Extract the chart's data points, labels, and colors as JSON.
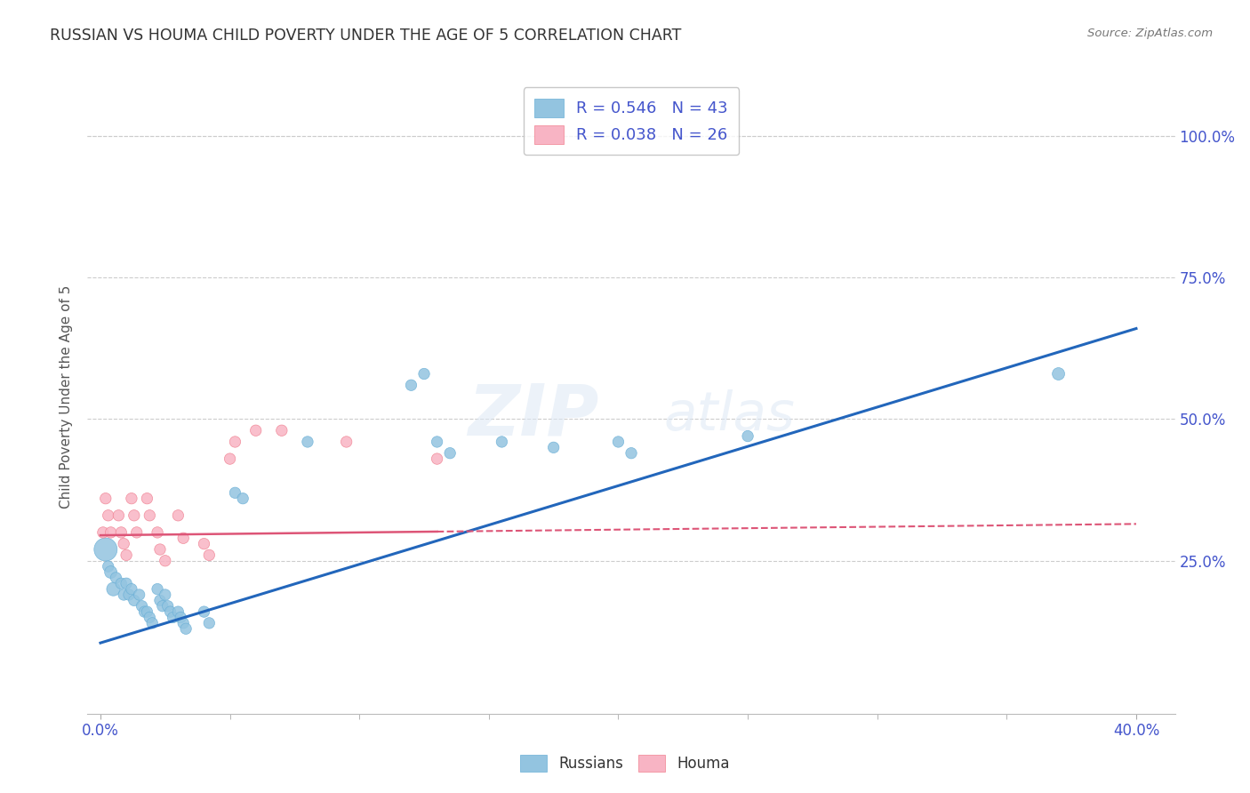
{
  "title": "RUSSIAN VS HOUMA CHILD POVERTY UNDER THE AGE OF 5 CORRELATION CHART",
  "source": "Source: ZipAtlas.com",
  "ylabel": "Child Poverty Under the Age of 5",
  "xlabel_ticks": [
    "0.0%",
    "40.0%"
  ],
  "xlabel_tick_vals": [
    0.0,
    0.4
  ],
  "ylabel_ticks": [
    "100.0%",
    "75.0%",
    "50.0%",
    "25.0%"
  ],
  "ylabel_tick_vals": [
    1.0,
    0.75,
    0.5,
    0.25
  ],
  "xlim": [
    -0.005,
    0.415
  ],
  "ylim": [
    -0.02,
    1.1
  ],
  "legend1_label": "R = 0.546   N = 43",
  "legend2_label": "R = 0.038   N = 26",
  "legend_bottom_label1": "Russians",
  "legend_bottom_label2": "Houma",
  "watermark_zip": "ZIP",
  "watermark_atlas": "atlas",
  "blue_color": "#93c4e0",
  "pink_color": "#f8b4c4",
  "blue_edge": "#6aafd6",
  "pink_edge": "#f08090",
  "blue_line_color": "#2266bb",
  "pink_line_color": "#dd5577",
  "title_color": "#333333",
  "source_color": "#777777",
  "axis_tick_color": "#4455cc",
  "ylabel_color": "#555555",
  "grid_color": "#cccccc",
  "background_color": "#ffffff",
  "russians_x": [
    0.002,
    0.003,
    0.004,
    0.005,
    0.006,
    0.008,
    0.009,
    0.01,
    0.011,
    0.012,
    0.013,
    0.015,
    0.016,
    0.017,
    0.018,
    0.019,
    0.02,
    0.022,
    0.023,
    0.024,
    0.025,
    0.026,
    0.027,
    0.028,
    0.03,
    0.031,
    0.032,
    0.033,
    0.04,
    0.042,
    0.052,
    0.055,
    0.08,
    0.12,
    0.125,
    0.13,
    0.135,
    0.155,
    0.175,
    0.2,
    0.205,
    0.25,
    0.37
  ],
  "russians_y": [
    0.27,
    0.24,
    0.23,
    0.2,
    0.22,
    0.21,
    0.19,
    0.21,
    0.19,
    0.2,
    0.18,
    0.19,
    0.17,
    0.16,
    0.16,
    0.15,
    0.14,
    0.2,
    0.18,
    0.17,
    0.19,
    0.17,
    0.16,
    0.15,
    0.16,
    0.15,
    0.14,
    0.13,
    0.16,
    0.14,
    0.37,
    0.36,
    0.46,
    0.56,
    0.58,
    0.46,
    0.44,
    0.46,
    0.45,
    0.46,
    0.44,
    0.47,
    0.58
  ],
  "russians_size": [
    350,
    80,
    100,
    120,
    80,
    80,
    80,
    80,
    80,
    80,
    80,
    80,
    80,
    80,
    80,
    80,
    80,
    80,
    80,
    80,
    80,
    80,
    80,
    80,
    80,
    80,
    80,
    80,
    80,
    80,
    80,
    80,
    80,
    80,
    80,
    80,
    80,
    80,
    80,
    80,
    80,
    80,
    100
  ],
  "houma_x": [
    0.001,
    0.002,
    0.003,
    0.004,
    0.007,
    0.008,
    0.009,
    0.01,
    0.012,
    0.013,
    0.014,
    0.018,
    0.019,
    0.022,
    0.023,
    0.025,
    0.03,
    0.032,
    0.04,
    0.042,
    0.05,
    0.052,
    0.06,
    0.07,
    0.095,
    0.13
  ],
  "houma_y": [
    0.3,
    0.36,
    0.33,
    0.3,
    0.33,
    0.3,
    0.28,
    0.26,
    0.36,
    0.33,
    0.3,
    0.36,
    0.33,
    0.3,
    0.27,
    0.25,
    0.33,
    0.29,
    0.28,
    0.26,
    0.43,
    0.46,
    0.48,
    0.48,
    0.46,
    0.43
  ],
  "houma_size": [
    80,
    80,
    80,
    80,
    80,
    80,
    80,
    80,
    80,
    80,
    80,
    80,
    80,
    80,
    80,
    80,
    80,
    80,
    80,
    80,
    80,
    80,
    80,
    80,
    80,
    80
  ],
  "russian_trend": [
    0.0,
    0.4,
    0.105,
    0.66
  ],
  "houma_trend": [
    0.0,
    0.4,
    0.295,
    0.315
  ],
  "houma_trend_dashed_start": 0.13
}
